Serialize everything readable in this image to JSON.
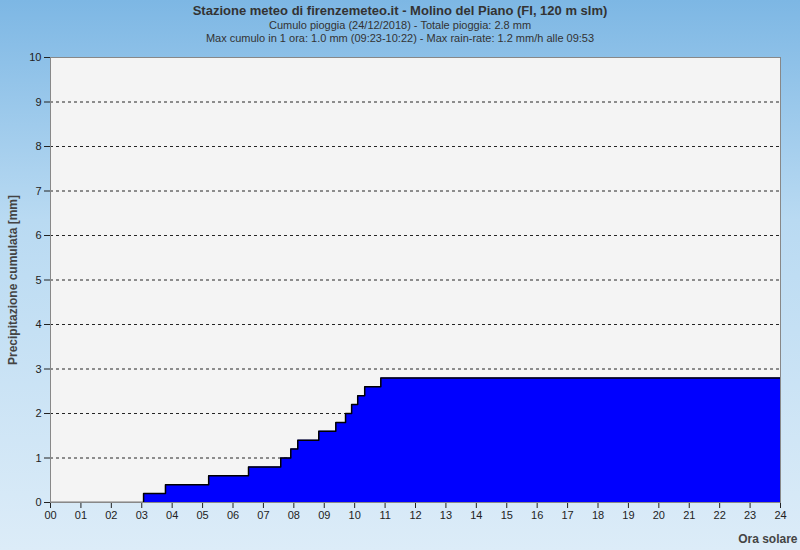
{
  "chart_data": {
    "type": "area",
    "title": "Stazione meteo di firenzemeteo.it - Molino del Piano (FI, 120 m slm)",
    "subtitle": [
      "Cumulo pioggia (24/12/2018) - Totale pioggia: 2.8 mm",
      "Max cumulo in 1 ora: 1.0 mm (09:23-10:22) - Max rain-rate: 1.2 mm/h alle 09:53"
    ],
    "x_label": "Ora solare",
    "y_label": "Precipitazione cumulata [mm]",
    "x": [
      0,
      3.06,
      3.78,
      5.2,
      6.51,
      7.57,
      7.9,
      8.13,
      8.82,
      9.38,
      9.7,
      9.9,
      10.1,
      10.33,
      10.86,
      24
    ],
    "values": [
      0,
      0.2,
      0.4,
      0.6,
      0.8,
      1.0,
      1.2,
      1.4,
      1.6,
      1.8,
      2.0,
      2.2,
      2.4,
      2.6,
      2.8,
      2.8
    ],
    "color": "#0000ff",
    "xlim": [
      0,
      24
    ],
    "xticks": [
      {
        "value": 0,
        "label": "00"
      },
      {
        "value": 1,
        "label": "01"
      },
      {
        "value": 2,
        "label": "02"
      },
      {
        "value": 3,
        "label": "03"
      },
      {
        "value": 4,
        "label": "04"
      },
      {
        "value": 5,
        "label": "05"
      },
      {
        "value": 6,
        "label": "06"
      },
      {
        "value": 7,
        "label": "07"
      },
      {
        "value": 8,
        "label": "08"
      },
      {
        "value": 9,
        "label": "09"
      },
      10,
      11,
      12,
      13,
      14,
      15,
      16,
      17,
      18,
      19,
      20,
      21,
      22,
      23,
      24
    ],
    "ylim": [
      0,
      10
    ],
    "yticks": [
      0,
      1,
      2,
      3,
      4,
      5,
      6,
      7,
      8,
      9,
      10
    ],
    "grid": true
  }
}
